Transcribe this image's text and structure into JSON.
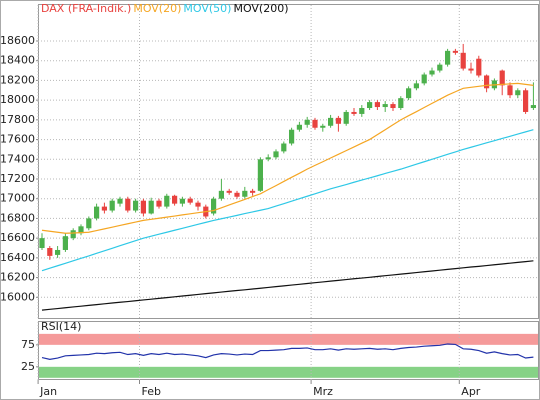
{
  "chart_data": [
    {
      "type": "candlestick",
      "ylim": [
        15790,
        18965
      ],
      "yticks": [
        16000,
        16200,
        16400,
        16600,
        16800,
        17000,
        17200,
        17400,
        17600,
        17800,
        18000,
        18200,
        18400,
        18600
      ],
      "grid": true,
      "series": [
        {
          "name": "DAX (FRA-Indik.)",
          "type": "candlestick",
          "color": "#e8423f",
          "up_color": "#4cb04c",
          "open": [
            16500,
            16500,
            16430,
            16480,
            16600,
            16650,
            16700,
            16800,
            16920,
            16880,
            16950,
            17000,
            16880,
            16980,
            16850,
            16980,
            16920,
            17030,
            16950,
            17000,
            16960,
            16920,
            16850,
            17000,
            17080,
            17060,
            17020,
            17080,
            17080,
            17400,
            17420,
            17480,
            17560,
            17700,
            17750,
            17800,
            17720,
            17740,
            17820,
            17760,
            17880,
            17860,
            17920,
            17980,
            17930,
            17960,
            17920,
            18020,
            18120,
            18170,
            18260,
            18300,
            18360,
            18500,
            18480,
            18320,
            18420,
            18250,
            18120,
            18300,
            18150,
            18050,
            18100,
            17920
          ],
          "high": [
            16650,
            16520,
            16520,
            16650,
            16700,
            16740,
            16820,
            16950,
            16960,
            17000,
            17020,
            17020,
            17000,
            17000,
            17010,
            17000,
            17050,
            17040,
            17020,
            17020,
            16980,
            16940,
            17020,
            17200,
            17100,
            17080,
            17120,
            17100,
            17420,
            17450,
            17500,
            17580,
            17720,
            17780,
            17830,
            17820,
            17760,
            17850,
            17840,
            17900,
            17920,
            17950,
            18000,
            18000,
            17990,
            17980,
            18040,
            18140,
            18200,
            18280,
            18330,
            18380,
            18520,
            18520,
            18570,
            18380,
            18450,
            18260,
            18220,
            18310,
            18180,
            18120,
            18120,
            18180
          ],
          "low": [
            16480,
            16380,
            16400,
            16460,
            16580,
            16630,
            16680,
            16780,
            16850,
            16860,
            16920,
            16860,
            16860,
            16820,
            16840,
            16900,
            16900,
            16930,
            16920,
            16940,
            16880,
            16800,
            16830,
            16980,
            17040,
            17000,
            17000,
            17030,
            17070,
            17380,
            17400,
            17460,
            17540,
            17680,
            17720,
            17700,
            17680,
            17720,
            17680,
            17740,
            17840,
            17830,
            17900,
            17900,
            17880,
            17890,
            17900,
            18000,
            18100,
            18150,
            18240,
            18280,
            18340,
            18460,
            18300,
            18270,
            18230,
            18080,
            18100,
            18050,
            18020,
            18020,
            17860,
            17900
          ],
          "close": [
            16600,
            16420,
            16480,
            16620,
            16680,
            16720,
            16800,
            16920,
            16880,
            16980,
            17000,
            16880,
            16980,
            16850,
            16980,
            16920,
            17030,
            16950,
            17000,
            16960,
            16920,
            16820,
            17000,
            17080,
            17060,
            17020,
            17080,
            17060,
            17400,
            17420,
            17480,
            17560,
            17700,
            17750,
            17800,
            17720,
            17740,
            17820,
            17760,
            17880,
            17860,
            17920,
            17980,
            17930,
            17960,
            17920,
            18020,
            18120,
            18170,
            18260,
            18300,
            18360,
            18500,
            18480,
            18320,
            18300,
            18250,
            18120,
            18200,
            18150,
            18050,
            18100,
            17880,
            17950
          ]
        },
        {
          "name": "MOV(20)",
          "type": "line",
          "color": "#f5a623",
          "values": [
            16680,
            16670,
            16660,
            16650,
            16652,
            16656,
            16660,
            16677,
            16694,
            16711,
            16729,
            16746,
            16763,
            16780,
            16791,
            16802,
            16813,
            16824,
            16836,
            16847,
            16858,
            16869,
            16880,
            16908,
            16937,
            16965,
            16993,
            17022,
            17050,
            17092,
            17133,
            17175,
            17217,
            17258,
            17300,
            17338,
            17375,
            17413,
            17450,
            17488,
            17525,
            17563,
            17600,
            17650,
            17700,
            17750,
            17800,
            17842,
            17883,
            17925,
            17967,
            18008,
            18050,
            18085,
            18120,
            18130,
            18140,
            18150,
            18155,
            18160,
            18165,
            18170,
            18160,
            18150
          ]
        },
        {
          "name": "MOV(50)",
          "type": "line",
          "color": "#2ec8e6",
          "values": [
            16270,
            16295,
            16320,
            16345,
            16370,
            16395,
            16420,
            16446,
            16471,
            16497,
            16523,
            16549,
            16574,
            16600,
            16620,
            16640,
            16660,
            16680,
            16700,
            16720,
            16740,
            16760,
            16780,
            16797,
            16814,
            16831,
            16849,
            16866,
            16883,
            16900,
            16925,
            16950,
            16975,
            17000,
            17025,
            17050,
            17075,
            17100,
            17122,
            17144,
            17167,
            17189,
            17211,
            17233,
            17256,
            17278,
            17300,
            17325,
            17350,
            17375,
            17400,
            17425,
            17450,
            17475,
            17500,
            17522,
            17544,
            17567,
            17589,
            17611,
            17633,
            17656,
            17678,
            17700
          ]
        },
        {
          "name": "MOV(200)",
          "type": "line",
          "color": "#111111",
          "values": [
            15870,
            15878,
            15886,
            15894,
            15902,
            15910,
            15918,
            15926,
            15934,
            15942,
            15950,
            15957,
            15965,
            15973,
            15981,
            15989,
            15997,
            16005,
            16013,
            16021,
            16029,
            16037,
            16045,
            16053,
            16061,
            16069,
            16076,
            16084,
            16092,
            16100,
            16108,
            16116,
            16124,
            16132,
            16140,
            16148,
            16156,
            16164,
            16172,
            16180,
            16188,
            16195,
            16203,
            16211,
            16219,
            16227,
            16235,
            16243,
            16251,
            16259,
            16267,
            16275,
            16283,
            16291,
            16299,
            16307,
            16314,
            16322,
            16330,
            16338,
            16346,
            16354,
            16362,
            16370
          ]
        }
      ]
    },
    {
      "type": "line",
      "title": "RSI(14)",
      "ylim": [
        -5,
        127
      ],
      "yticks": [
        25,
        75
      ],
      "bands": [
        {
          "from": 75,
          "to": 100,
          "color": "#f59a9a"
        },
        {
          "from": 0,
          "to": 25,
          "color": "#86d286"
        }
      ],
      "categories": [
        "Jan",
        null,
        null,
        null,
        null,
        null,
        null,
        null,
        null,
        null,
        null,
        null,
        null,
        "Feb",
        null,
        null,
        null,
        null,
        null,
        null,
        null,
        null,
        null,
        null,
        null,
        null,
        null,
        null,
        null,
        null,
        null,
        null,
        null,
        null,
        null,
        "Mrz",
        null,
        null,
        null,
        null,
        null,
        null,
        null,
        null,
        null,
        null,
        null,
        null,
        null,
        null,
        null,
        null,
        null,
        null,
        "Apr",
        null,
        null,
        null,
        null,
        null,
        null,
        null,
        null,
        null
      ],
      "series": [
        {
          "name": "RSI(14)",
          "color": "#2233aa",
          "values": [
            46,
            42,
            45,
            50,
            51,
            52,
            53,
            56,
            55,
            57,
            58,
            53,
            55,
            51,
            55,
            53,
            56,
            53,
            54,
            52,
            50,
            46,
            52,
            55,
            54,
            52,
            54,
            53,
            62,
            62,
            63,
            64,
            67,
            67,
            68,
            64,
            64,
            66,
            63,
            66,
            65,
            66,
            67,
            65,
            66,
            64,
            67,
            69,
            70,
            72,
            73,
            74,
            77,
            76,
            66,
            65,
            62,
            56,
            59,
            55,
            52,
            53,
            45,
            47
          ]
        }
      ]
    }
  ]
}
